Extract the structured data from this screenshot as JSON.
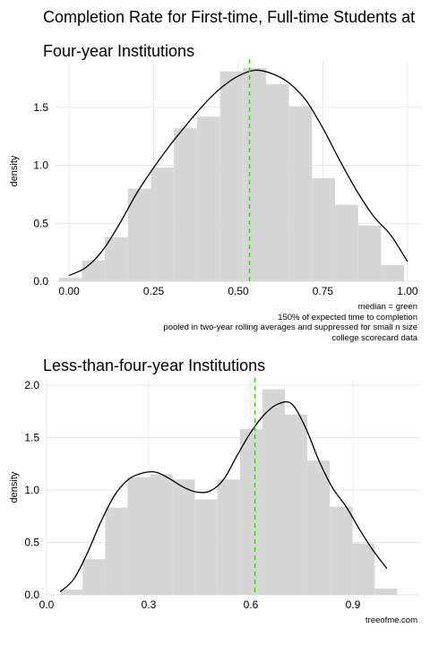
{
  "title_line1": "Completion Rate for First-time, Full-time Students at",
  "title_line2": "Four-year Institutions",
  "caption_lines": [
    "median = green",
    "150% of expected time to completion",
    "pooled in two-year rolling averages and suppressed for small n size",
    "college scorecard data"
  ],
  "source": "treeofme.com",
  "colors": {
    "bar": "#d6d6d6",
    "density_line": "#000000",
    "median_line": "#33cc11",
    "grid": "#e6e6e6"
  },
  "chart_data": [
    {
      "type": "bar",
      "title": "",
      "xlabel": "",
      "ylabel": "density",
      "xlim": [
        -0.04,
        1.04
      ],
      "ylim": [
        0,
        1.9
      ],
      "x_ticks": [
        0,
        0.25,
        0.5,
        0.75,
        1.0
      ],
      "x_tick_labels": [
        "0.00",
        "0.25",
        "0.50",
        "0.75",
        "1.00"
      ],
      "y_ticks": [
        0,
        0.5,
        1.0,
        1.5
      ],
      "y_tick_labels": [
        "0.0",
        "0.5",
        "1.0",
        "1.5"
      ],
      "bin_width": 0.068,
      "bins": [
        {
          "x0": -0.03,
          "density": 0.03
        },
        {
          "x0": 0.038,
          "density": 0.18
        },
        {
          "x0": 0.106,
          "density": 0.38
        },
        {
          "x0": 0.174,
          "density": 0.8
        },
        {
          "x0": 0.242,
          "density": 0.98
        },
        {
          "x0": 0.31,
          "density": 1.32
        },
        {
          "x0": 0.378,
          "density": 1.42
        },
        {
          "x0": 0.446,
          "density": 1.81
        },
        {
          "x0": 0.514,
          "density": 1.84
        },
        {
          "x0": 0.582,
          "density": 1.7
        },
        {
          "x0": 0.65,
          "density": 1.51
        },
        {
          "x0": 0.718,
          "density": 0.89
        },
        {
          "x0": 0.786,
          "density": 0.66
        },
        {
          "x0": 0.854,
          "density": 0.48
        },
        {
          "x0": 0.922,
          "density": 0.14
        }
      ],
      "density_curve": [
        [
          0.0,
          0.05
        ],
        [
          0.05,
          0.12
        ],
        [
          0.1,
          0.27
        ],
        [
          0.15,
          0.5
        ],
        [
          0.2,
          0.76
        ],
        [
          0.25,
          0.98
        ],
        [
          0.3,
          1.18
        ],
        [
          0.35,
          1.36
        ],
        [
          0.4,
          1.53
        ],
        [
          0.45,
          1.67
        ],
        [
          0.5,
          1.77
        ],
        [
          0.55,
          1.82
        ],
        [
          0.6,
          1.79
        ],
        [
          0.65,
          1.71
        ],
        [
          0.7,
          1.56
        ],
        [
          0.75,
          1.32
        ],
        [
          0.8,
          1.04
        ],
        [
          0.85,
          0.78
        ],
        [
          0.9,
          0.56
        ],
        [
          0.95,
          0.4
        ],
        [
          1.0,
          0.17
        ]
      ],
      "median": 0.533
    },
    {
      "type": "bar",
      "title": "Less-than-four-year Institutions",
      "xlabel": "",
      "ylabel": "density",
      "xlim": [
        0,
        1.1
      ],
      "ylim": [
        0,
        2.05
      ],
      "x_ticks": [
        0,
        0.3,
        0.6,
        0.9
      ],
      "x_tick_labels": [
        "0.0",
        "0.3",
        "0.6",
        "0.9"
      ],
      "y_ticks": [
        0,
        0.5,
        1.0,
        1.5,
        2.0
      ],
      "y_tick_labels": [
        "0.0",
        "0.5",
        "1.0",
        "1.5",
        "2.0"
      ],
      "bin_width": 0.066,
      "bins": [
        {
          "x0": 0.04,
          "density": 0.05
        },
        {
          "x0": 0.106,
          "density": 0.34
        },
        {
          "x0": 0.172,
          "density": 0.83
        },
        {
          "x0": 0.238,
          "density": 1.12
        },
        {
          "x0": 0.304,
          "density": 1.15
        },
        {
          "x0": 0.37,
          "density": 1.1
        },
        {
          "x0": 0.436,
          "density": 0.91
        },
        {
          "x0": 0.502,
          "density": 1.1
        },
        {
          "x0": 0.568,
          "density": 1.58
        },
        {
          "x0": 0.634,
          "density": 1.96
        },
        {
          "x0": 0.7,
          "density": 1.72
        },
        {
          "x0": 0.766,
          "density": 1.28
        },
        {
          "x0": 0.832,
          "density": 0.84
        },
        {
          "x0": 0.898,
          "density": 0.49
        },
        {
          "x0": 0.964,
          "density": 0.06
        }
      ],
      "density_curve": [
        [
          0.04,
          0.03
        ],
        [
          0.08,
          0.15
        ],
        [
          0.12,
          0.4
        ],
        [
          0.16,
          0.7
        ],
        [
          0.2,
          0.95
        ],
        [
          0.24,
          1.1
        ],
        [
          0.28,
          1.16
        ],
        [
          0.32,
          1.17
        ],
        [
          0.36,
          1.11
        ],
        [
          0.4,
          1.03
        ],
        [
          0.44,
          0.98
        ],
        [
          0.48,
          0.99
        ],
        [
          0.52,
          1.1
        ],
        [
          0.56,
          1.33
        ],
        [
          0.6,
          1.55
        ],
        [
          0.64,
          1.72
        ],
        [
          0.68,
          1.82
        ],
        [
          0.72,
          1.82
        ],
        [
          0.76,
          1.6
        ],
        [
          0.8,
          1.28
        ],
        [
          0.84,
          1.02
        ],
        [
          0.88,
          0.84
        ],
        [
          0.92,
          0.62
        ],
        [
          0.96,
          0.42
        ],
        [
          1.0,
          0.25
        ]
      ],
      "median": 0.612
    }
  ]
}
